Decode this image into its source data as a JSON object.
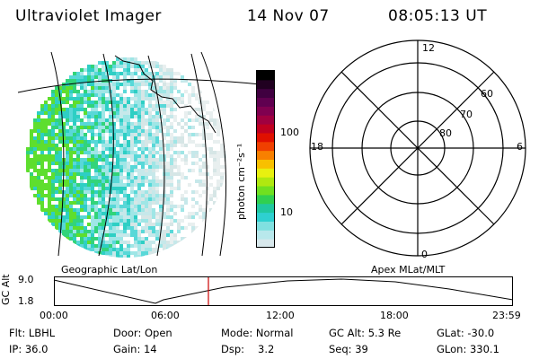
{
  "header": {
    "instrument": "Ultraviolet Imager",
    "date": "14 Nov 07",
    "time": "08:05:13 UT"
  },
  "geo_panel": {
    "caption": "Geographic Lat/Lon"
  },
  "colorbar": {
    "label": "photon cm⁻²s⁻¹",
    "ticks": [
      "100",
      "10"
    ],
    "colors": [
      "#d8e8ec",
      "#b8e8ec",
      "#80e0e0",
      "#2ed0d0",
      "#20c8a0",
      "#30d050",
      "#70e020",
      "#b0e810",
      "#e8f010",
      "#f8c000",
      "#f88000",
      "#f04000",
      "#e01000",
      "#c00020",
      "#a00040",
      "#800050",
      "#600050",
      "#400040",
      "#200020",
      "#000000"
    ]
  },
  "polar_panel": {
    "caption": "Apex MLat/MLT",
    "mlt_labels": {
      "top": "12",
      "left": "18",
      "right": "6",
      "bottom": "0"
    },
    "lat_labels": [
      "60",
      "70",
      "80"
    ]
  },
  "altitude_plot": {
    "ylabel": "GC Alt",
    "y_ticks": [
      "9.0",
      "1.8"
    ],
    "x_ticks": [
      "00:00",
      "06:00",
      "12:00",
      "18:00",
      "23:59"
    ],
    "marker_color": "#cc0000"
  },
  "info": {
    "flt": "Flt: LBHL",
    "ip": "IP: 36.0",
    "door": "Door: Open",
    "gain": "Gain: 14",
    "mode": "Mode: Normal",
    "dsp_label": "Dsp:",
    "dsp_value": "3.2",
    "gc_alt": "GC Alt: 5.3 Re",
    "seq": "Seq: 39",
    "glat": "GLat: -30.0",
    "glon": "GLon: 330.1"
  }
}
